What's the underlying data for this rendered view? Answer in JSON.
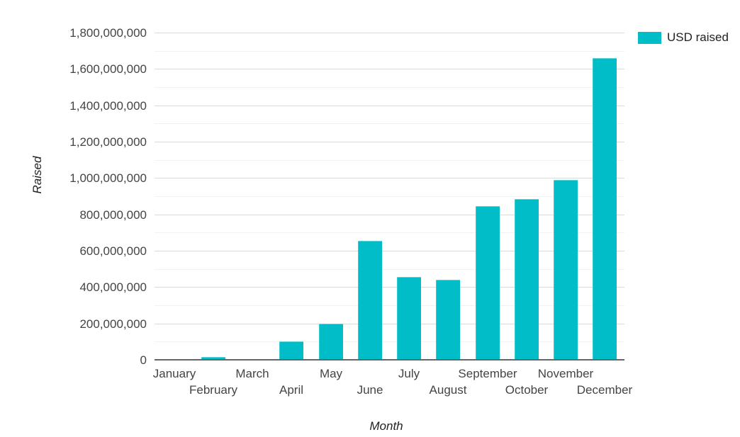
{
  "chart_data": {
    "type": "bar",
    "title": "",
    "series_name": "USD raised",
    "categories": [
      "January",
      "February",
      "March",
      "April",
      "May",
      "June",
      "July",
      "August",
      "September",
      "October",
      "November",
      "December"
    ],
    "values": [
      5000000,
      15000000,
      5000000,
      100000000,
      200000000,
      655000000,
      455000000,
      440000000,
      845000000,
      885000000,
      990000000,
      1660000000
    ],
    "xlabel": "Month",
    "ylabel": "Raised",
    "ylim": [
      0,
      1800000000
    ],
    "y_tick_step": 200000000,
    "y_minor_gridline_step": 100000000,
    "y_tick_labels": [
      "0",
      "200,000,000",
      "400,000,000",
      "600,000,000",
      "800,000,000",
      "1,000,000,000",
      "1,200,000,000",
      "1,400,000,000",
      "1,600,000,000",
      "1,800,000,000"
    ],
    "grid": true,
    "legend_position": "top-right",
    "x_labels_staggered": true,
    "colors": {
      "bar": "#00bdc7",
      "major_gridline": "#dadada",
      "minor_gridline": "#f2f2f2",
      "axis_line": "#666666",
      "tick_text": "#444444",
      "axis_title_text": "#222222"
    }
  }
}
